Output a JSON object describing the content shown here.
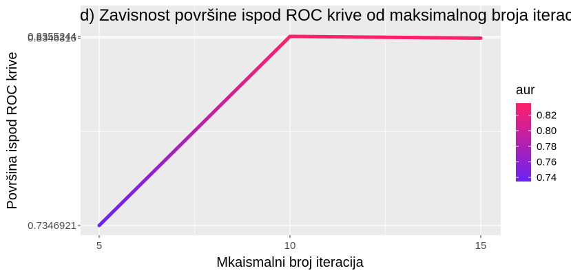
{
  "chart_data": {
    "type": "line",
    "title": "d) Zavisnost površine ispod ROC krive od maksimalnog broja iteracija",
    "xlabel": "Mkaismalni broj iteracija",
    "ylabel": "Površina ispod ROC krive",
    "x": [
      5,
      10,
      15
    ],
    "series": [
      {
        "values": [
          0.7346921,
          0.8355244,
          0.8346316
        ]
      }
    ],
    "xlim": [
      4.45,
      15.55
    ],
    "ylim": [
      0.73,
      0.84
    ],
    "x_ticks": [
      5,
      10,
      15
    ],
    "x_tick_labels": [
      "5",
      "10",
      "15"
    ],
    "y_ticks": [
      0.7346921,
      0.8346316,
      0.8355244
    ],
    "y_tick_labels": [
      "0.7346921",
      "0.8346316",
      "0.8355244"
    ],
    "grid": true,
    "legend": {
      "title": "aur",
      "position": "right",
      "type": "colorbar",
      "breaks": [
        0.74,
        0.76,
        0.78,
        0.8,
        0.82
      ],
      "break_labels": [
        "0.74",
        "0.76",
        "0.78",
        "0.80",
        "0.82"
      ],
      "range": [
        0.7346921,
        0.8355244
      ],
      "low_color": "#6a22f5",
      "high_color": "#ff2068"
    },
    "panel_background": "#ebebeb",
    "grid_color": "#ffffff"
  }
}
